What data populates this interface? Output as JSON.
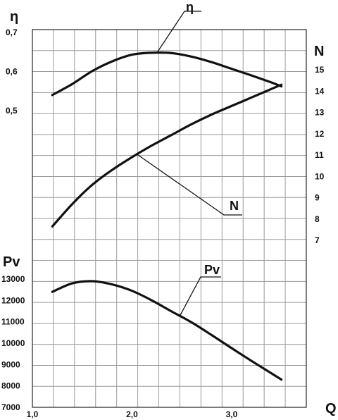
{
  "chart_data": {
    "type": "line",
    "title": "",
    "x_axis": {
      "label": "Q",
      "range": [
        1.0,
        3.75
      ],
      "tick_labels": [
        {
          "value": 1.0,
          "text": "1,0"
        },
        {
          "value": 2.0,
          "text": "2,0"
        },
        {
          "value": 3.0,
          "text": "3,0"
        }
      ]
    },
    "eta_axis": {
      "label": "η",
      "range": [
        0.42,
        0.7
      ],
      "tick_labels": [
        {
          "value": 0.7,
          "text": "0,7"
        },
        {
          "value": 0.6,
          "text": "0,6"
        },
        {
          "value": 0.5,
          "text": "0,5"
        }
      ]
    },
    "n_axis": {
      "label": "N",
      "range": [
        6.6,
        16.0
      ],
      "tick_labels": [
        {
          "value": 15,
          "text": "15"
        },
        {
          "value": 14,
          "text": "14"
        },
        {
          "value": 13,
          "text": "13"
        },
        {
          "value": 12,
          "text": "12"
        },
        {
          "value": 11,
          "text": "11"
        },
        {
          "value": 10,
          "text": "10"
        },
        {
          "value": 9,
          "text": "9"
        },
        {
          "value": 8,
          "text": "8"
        },
        {
          "value": 7,
          "text": "7"
        }
      ]
    },
    "pv_axis": {
      "label": "Pv",
      "range": [
        7000,
        13800
      ],
      "tick_labels": [
        {
          "value": 13000,
          "text": "13000"
        },
        {
          "value": 12000,
          "text": "12000"
        },
        {
          "value": 11000,
          "text": "11000"
        },
        {
          "value": 10000,
          "text": "10000"
        },
        {
          "value": 9000,
          "text": "9000"
        },
        {
          "value": 8000,
          "text": "8000"
        },
        {
          "value": 7000,
          "text": "7000"
        }
      ]
    },
    "grid": true,
    "series": [
      {
        "name": "η",
        "axis": "eta",
        "x": [
          1.2,
          1.4,
          1.6,
          1.8,
          2.0,
          2.2,
          2.4,
          2.6,
          2.8,
          3.0,
          3.2,
          3.4,
          3.5
        ],
        "values": [
          0.54,
          0.568,
          0.601,
          0.626,
          0.643,
          0.648,
          0.647,
          0.638,
          0.624,
          0.607,
          0.59,
          0.572,
          0.562
        ]
      },
      {
        "name": "N",
        "axis": "n",
        "x": [
          1.2,
          1.4,
          1.6,
          1.8,
          2.0,
          2.2,
          2.4,
          2.6,
          2.8,
          3.0,
          3.2,
          3.4,
          3.5
        ],
        "values": [
          7.65,
          8.7,
          9.6,
          10.3,
          10.9,
          11.45,
          11.95,
          12.45,
          12.9,
          13.3,
          13.7,
          14.1,
          14.3
        ]
      },
      {
        "name": "Pv",
        "axis": "pv",
        "x": [
          1.2,
          1.4,
          1.6,
          1.8,
          2.0,
          2.2,
          2.4,
          2.6,
          2.8,
          3.0,
          3.2,
          3.4,
          3.5
        ],
        "values": [
          12400,
          12800,
          12900,
          12750,
          12450,
          12000,
          11480,
          10970,
          10380,
          9770,
          9170,
          8590,
          8300
        ]
      }
    ]
  }
}
